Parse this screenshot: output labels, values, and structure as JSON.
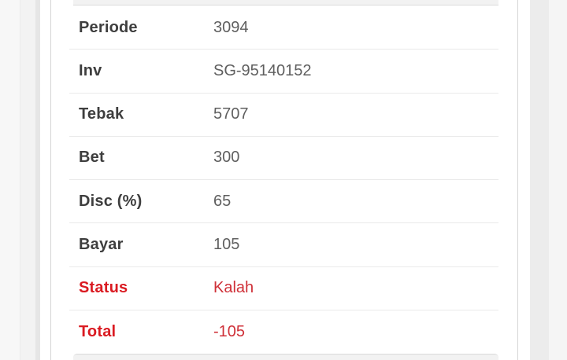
{
  "table": {
    "rows": [
      {
        "label": "Periode",
        "value": "3094",
        "variant": "normal"
      },
      {
        "label": "Inv",
        "value": "SG-95140152",
        "variant": "normal"
      },
      {
        "label": "Tebak",
        "value": "5707",
        "variant": "normal"
      },
      {
        "label": "Bet",
        "value": "300",
        "variant": "normal"
      },
      {
        "label": "Disc (%)",
        "value": "65",
        "variant": "normal"
      },
      {
        "label": "Bayar",
        "value": "105",
        "variant": "normal"
      },
      {
        "label": "Status",
        "value": "Kalah",
        "variant": "danger"
      },
      {
        "label": "Total",
        "value": "-105",
        "variant": "danger"
      }
    ]
  },
  "colors": {
    "label_text": "#3e3e3e",
    "value_text": "#5f5f5f",
    "danger_label": "#da1a21",
    "danger_value": "#cf3038",
    "separator": "#eaeaea",
    "panel_strip": "#f2f2f2",
    "card_border": "#d5d5d5"
  }
}
